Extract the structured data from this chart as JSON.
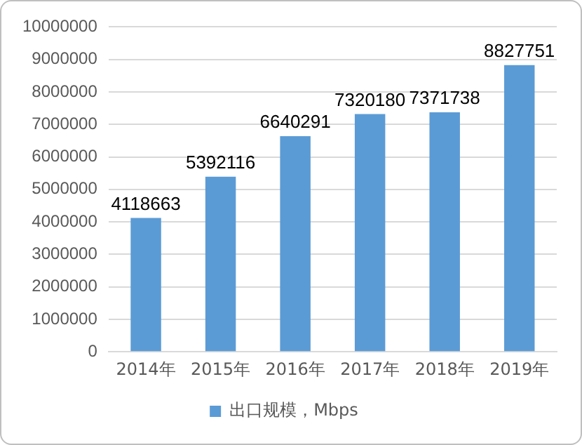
{
  "chart_data": {
    "type": "bar",
    "categories": [
      "2014年",
      "2015年",
      "2016年",
      "2017年",
      "2018年",
      "2019年"
    ],
    "series": [
      {
        "name": "出口规模，Mbps",
        "color": "#5b9bd5",
        "values": [
          4118663,
          5392116,
          6640291,
          7320180,
          7371738,
          8827751
        ]
      }
    ],
    "ylim": [
      0,
      10000000
    ],
    "yticks": [
      0,
      1000000,
      2000000,
      3000000,
      4000000,
      5000000,
      6000000,
      7000000,
      8000000,
      9000000,
      10000000
    ],
    "grid": "y",
    "legend": "bottom",
    "data_labels": true
  }
}
